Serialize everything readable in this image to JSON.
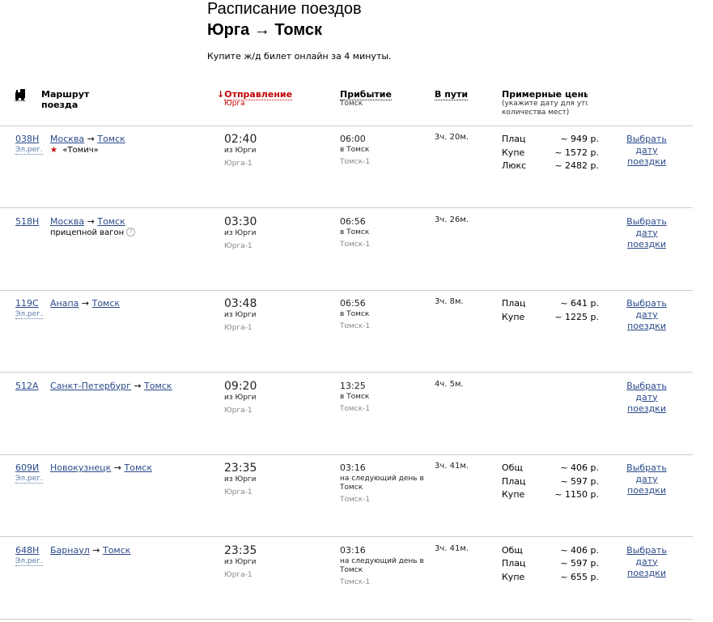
{
  "title": "Расписание поездов",
  "route_title": "Юрга → Томск",
  "subtitle": "Купите ж/д билет онлайн за 4 минуты.",
  "header": {
    "train_icon": "train-icon",
    "route": "Маршрут поезда",
    "departure": "Отправление",
    "departure_sub": "Юрга",
    "sort_arrow": "↓",
    "arrival": "Прибытие",
    "arrival_sub": "Томск",
    "duration": "В пути",
    "prices": "Примерные цены",
    "prices_sub": "(укажите дату для уточнения количества мест)"
  },
  "rows": [
    {
      "num": "038Н",
      "elreg": "Эл.рег.",
      "from": "Москва",
      "to": "Томск",
      "note": "«Томич»",
      "star": "★",
      "dep": "02:40",
      "dep_from": "из Юрги",
      "dep_station": "Юрга-1",
      "arr": "06:00",
      "arr_to": "в Томск",
      "arr_station": "Томск-1",
      "dur": "3ч. 20м.",
      "prices": [
        [
          "Плац",
          "~ 949 р."
        ],
        [
          "Купе",
          "~ 1572 р."
        ],
        [
          "Люкс",
          "~ 2482 р."
        ]
      ],
      "link": "Выбрать дату поездки"
    },
    {
      "num": "518Н",
      "from": "Москва",
      "to": "Томск",
      "note": "прицепной вагон",
      "help": "?",
      "dep": "03:30",
      "dep_from": "из Юрги",
      "dep_station": "Юрга-1",
      "arr": "06:56",
      "arr_to": "в Томск",
      "arr_station": "Томск-1",
      "dur": "3ч. 26м.",
      "prices": [],
      "link": "Выбрать дату поездки"
    },
    {
      "num": "119С",
      "elreg": "Эл.рег.",
      "from": "Анапа",
      "to": "Томск",
      "dep": "03:48",
      "dep_from": "из Юрги",
      "dep_station": "Юрга-1",
      "arr": "06:56",
      "arr_to": "в Томск",
      "arr_station": "Томск-1",
      "dur": "3ч. 8м.",
      "prices": [
        [
          "Плац",
          "~ 641 р."
        ],
        [
          "Купе",
          "~ 1225 р."
        ]
      ],
      "link": "Выбрать дату поездки"
    },
    {
      "num": "512А",
      "from": "Санкт-Петербург",
      "to": "Томск",
      "dep": "09:20",
      "dep_from": "из Юрги",
      "dep_station": "Юрга-1",
      "arr": "13:25",
      "arr_to": "в Томск",
      "arr_station": "Томск-1",
      "dur": "4ч. 5м.",
      "prices": [],
      "link": "Выбрать дату поездки"
    },
    {
      "num": "609И",
      "elreg": "Эл.рег.",
      "from": "Новокузнецк",
      "to": "Томск",
      "dep": "23:35",
      "dep_from": "из Юрги",
      "dep_station": "Юрга-1",
      "arr": "03:16",
      "arr_to": "на следующий день в Томск",
      "arr_station": "Томск-1",
      "dur": "3ч. 41м.",
      "prices": [
        [
          "Общ",
          "~ 406 р."
        ],
        [
          "Плац",
          "~ 597 р."
        ],
        [
          "Купе",
          "~ 1150 р."
        ]
      ],
      "link": "Выбрать дату поездки"
    },
    {
      "num": "648Н",
      "elreg": "Эл.рег.",
      "from": "Барнаул",
      "to": "Томск",
      "dep": "23:35",
      "dep_from": "из Юрги",
      "dep_station": "Юрга-1",
      "arr": "03:16",
      "arr_to": "на следующий день в Томск",
      "arr_station": "Томск-1",
      "dur": "3ч. 41м.",
      "prices": [
        [
          "Общ",
          "~ 406 р."
        ],
        [
          "Плац",
          "~ 597 р."
        ],
        [
          "Купе",
          "~ 655 р."
        ]
      ],
      "link": "Выбрать дату поездки"
    }
  ],
  "colors": {
    "link": "#2a4a8a",
    "sort": "#c00000",
    "divider": "#cccccc"
  }
}
